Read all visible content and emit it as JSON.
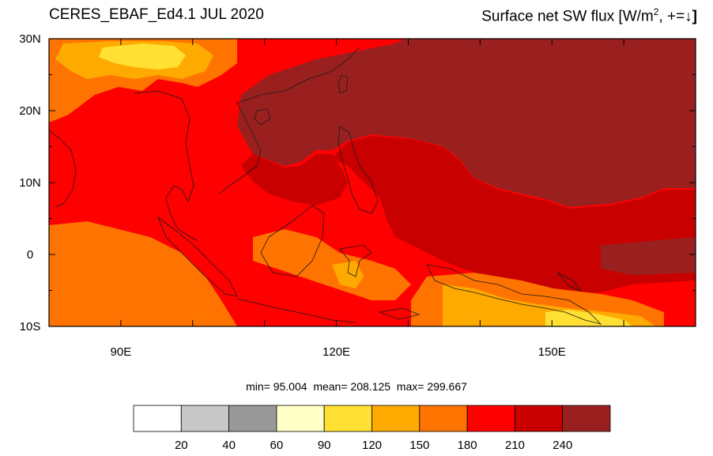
{
  "title_left": "CERES_EBAF_Ed4.1 JUL 2020",
  "title_right": {
    "prefix": "Surface net SW flux [W/m",
    "superscript": "2",
    "suffix": ", +=",
    "arrow": "↓",
    "close": "]"
  },
  "stats": {
    "min_label": "min=",
    "min": "95.004",
    "mean_label": "mean=",
    "mean": "208.125",
    "max_label": "max=",
    "max": "299.667"
  },
  "axes": {
    "lon_range": [
      80,
      170
    ],
    "lat_range": [
      -10,
      30
    ],
    "y_ticks": [
      {
        "lat": 30,
        "label": "30N"
      },
      {
        "lat": 20,
        "label": "20N"
      },
      {
        "lat": 10,
        "label": "10N"
      },
      {
        "lat": 0,
        "label": "0"
      },
      {
        "lat": -10,
        "label": "10S"
      }
    ],
    "x_ticks": [
      {
        "lon": 90,
        "label": "90E"
      },
      {
        "lon": 120,
        "label": "120E"
      },
      {
        "lon": 150,
        "label": "150E"
      }
    ]
  },
  "colorbar": {
    "levels": [
      20,
      40,
      60,
      90,
      120,
      150,
      180,
      210,
      240
    ],
    "labels": [
      "20",
      "40",
      "60",
      "90",
      "120",
      "150",
      "180",
      "210",
      "240"
    ],
    "colors": [
      "#ffffff",
      "#c8c8c8",
      "#999999",
      "#ffffc6",
      "#ffe033",
      "#ffaa00",
      "#ff7300",
      "#ff0000",
      "#c80000",
      "#9a2020"
    ]
  }
}
